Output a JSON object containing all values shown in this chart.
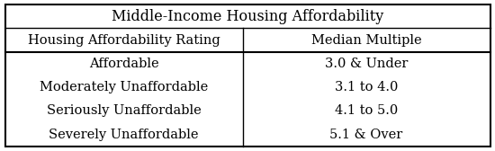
{
  "title": "Middle-Income Housing Affordability",
  "col1_header": "Housing Affordability Rating",
  "col2_header": "Median Multiple",
  "rows": [
    [
      "Affordable",
      "3.0 & Under"
    ],
    [
      "Moderately Unaffordable",
      "3.1 to 4.0"
    ],
    [
      "Seriously Unaffordable",
      "4.1 to 5.0"
    ],
    [
      "Severely Unaffordable",
      "5.1 & Over"
    ]
  ],
  "background_color": "#ffffff",
  "border_color": "#000000",
  "text_color": "#000000",
  "font_size": 10.5,
  "header_font_size": 10.5,
  "title_font_size": 11.5,
  "col_split": 0.49
}
